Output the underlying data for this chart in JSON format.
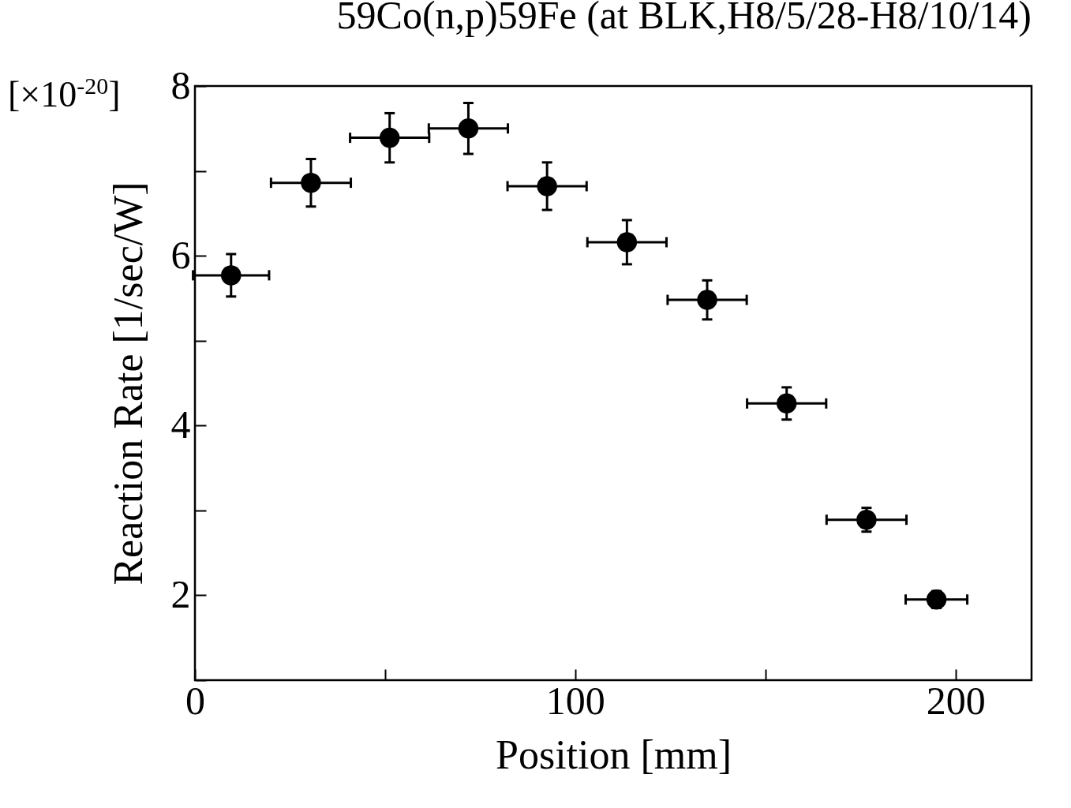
{
  "chart_data": {
    "type": "scatter",
    "title": "59Co(n,p)59Fe (at BLK,H8/5/28-H8/10/14)",
    "xlabel": "Position [mm]",
    "ylabel": "Reaction Rate [1/sec/W]",
    "annotations": [
      "[×10$^{-20}$]"
    ],
    "x": [
      9.5,
      30.5,
      51.2,
      71.9,
      92.6,
      113.6,
      134.7,
      155.6,
      176.6,
      195
    ],
    "series": [
      {
        "color": "#000000",
        "values": [
          5.77,
          6.86,
          7.39,
          7.5,
          6.82,
          6.16,
          5.48,
          4.26,
          2.89,
          1.95
        ],
        "errors": [
          0.25,
          0.28,
          0.29,
          0.3,
          0.28,
          0.26,
          0.23,
          0.19,
          0.14,
          0.1
        ],
        "xerrors": [
          10,
          10.5,
          10.4,
          10.4,
          10.4,
          10.4,
          10.4,
          10.4,
          10.5,
          8.1
        ]
      }
    ],
    "xlim": [
      0,
      220
    ],
    "xticks": [
      0,
      {
        "value": 50,
        "label": null
      },
      100,
      {
        "value": 150,
        "label": null
      },
      200
    ],
    "ylim": [
      1,
      8
    ],
    "yticks": [
      {
        "value": 1,
        "label": null
      },
      2,
      {
        "value": 3,
        "label": null
      },
      4,
      {
        "value": 5,
        "label": null
      },
      6,
      {
        "value": 7,
        "label": null
      },
      8
    ],
    "marker": "circle",
    "grid": false
  }
}
